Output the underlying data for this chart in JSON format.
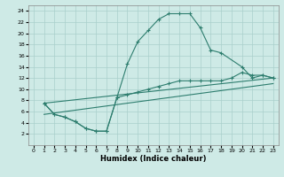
{
  "title": "",
  "xlabel": "Humidex (Indice chaleur)",
  "background_color": "#ceeae6",
  "line_color": "#2d7d6e",
  "grid_color": "#aacfcb",
  "xlim": [
    -0.5,
    23.5
  ],
  "ylim": [
    0,
    25
  ],
  "xticks": [
    0,
    1,
    2,
    3,
    4,
    5,
    6,
    7,
    8,
    9,
    10,
    11,
    12,
    13,
    14,
    15,
    16,
    17,
    18,
    19,
    20,
    21,
    22,
    23
  ],
  "yticks": [
    2,
    4,
    6,
    8,
    10,
    12,
    14,
    16,
    18,
    20,
    22,
    24
  ],
  "curve1_x": [
    1,
    2,
    3,
    4,
    5,
    6,
    7,
    8,
    9,
    10,
    11,
    12,
    13,
    14,
    15,
    16,
    17,
    18,
    20,
    21,
    22,
    23
  ],
  "curve1_y": [
    7.5,
    5.5,
    5.0,
    4.2,
    3.0,
    2.5,
    2.5,
    8.5,
    14.5,
    18.5,
    20.5,
    22.5,
    23.5,
    23.5,
    23.5,
    21.0,
    17.0,
    16.5,
    14.0,
    12.0,
    12.5,
    12.0
  ],
  "curve2_x": [
    1,
    2,
    3,
    4,
    5,
    6,
    7,
    8,
    9,
    10,
    11,
    12,
    13,
    14,
    15,
    16,
    17,
    18,
    19,
    20,
    21,
    22,
    23
  ],
  "curve2_y": [
    7.5,
    5.5,
    5.0,
    4.2,
    3.0,
    2.5,
    2.5,
    8.5,
    9.0,
    9.5,
    10.0,
    10.5,
    11.0,
    11.5,
    11.5,
    11.5,
    11.5,
    11.5,
    12.0,
    13.0,
    12.5,
    12.5,
    12.0
  ],
  "curve3_x": [
    1,
    23
  ],
  "curve3_y": [
    7.5,
    12.0
  ],
  "curve4_x": [
    1,
    23
  ],
  "curve4_y": [
    5.5,
    11.0
  ]
}
